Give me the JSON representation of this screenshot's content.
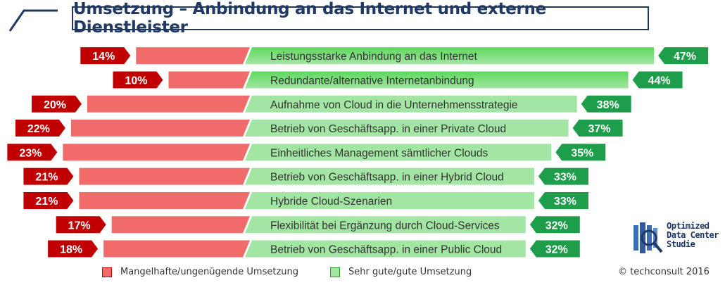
{
  "title": "Umsetzung – Anbindung an das Internet und externe Dienstleister",
  "legend": {
    "negative": "Mangelhafte/ungenügende Umsetzung",
    "positive": "Sehr gute/gute Umsetzung"
  },
  "copyright": "© techconsult 2016",
  "logo": {
    "line1": "Optimized",
    "line2": "Data Center",
    "line3": "Studie"
  },
  "colors": {
    "title": "#1f3864",
    "negative_bar": "#f26b6b",
    "negative_label": "#c00000",
    "positive_bar": "#a3e6a3",
    "positive_bar_top": "#5dd85d",
    "positive_label": "#1e9e4a"
  },
  "chart_data": {
    "type": "bar",
    "title": "Umsetzung – Anbindung an das Internet und externe Dienstleister",
    "categories": [
      "Leistungsstarke Anbindung an das Internet",
      "Redundante/alternative Internetanbindung",
      "Aufnahme von Cloud in die Unternehmensstrategie",
      "Betrieb von Geschäftsapp. in einer Private Cloud",
      "Einheitliches Management sämtlicher Clouds",
      "Betrieb von Geschäftsapp. in einer Hybrid Cloud",
      "Hybride Cloud-Szenarien",
      "Flexibilität bei Ergänzung durch Cloud-Services",
      "Betrieb von Geschäftsapp. in einer Public Cloud"
    ],
    "series": [
      {
        "name": "Mangelhafte/ungenügende Umsetzung",
        "values": [
          14,
          10,
          20,
          22,
          23,
          21,
          21,
          17,
          18
        ],
        "labels": [
          "14%",
          "10%",
          "20%",
          "22%",
          "23%",
          "21%",
          "21%",
          "17%",
          "18%"
        ]
      },
      {
        "name": "Sehr gute/gute Umsetzung",
        "values": [
          47,
          44,
          38,
          37,
          35,
          33,
          33,
          32,
          32
        ],
        "labels": [
          "47%",
          "44%",
          "38%",
          "37%",
          "35%",
          "33%",
          "33%",
          "32%",
          "32%"
        ]
      }
    ],
    "unit": "%"
  }
}
